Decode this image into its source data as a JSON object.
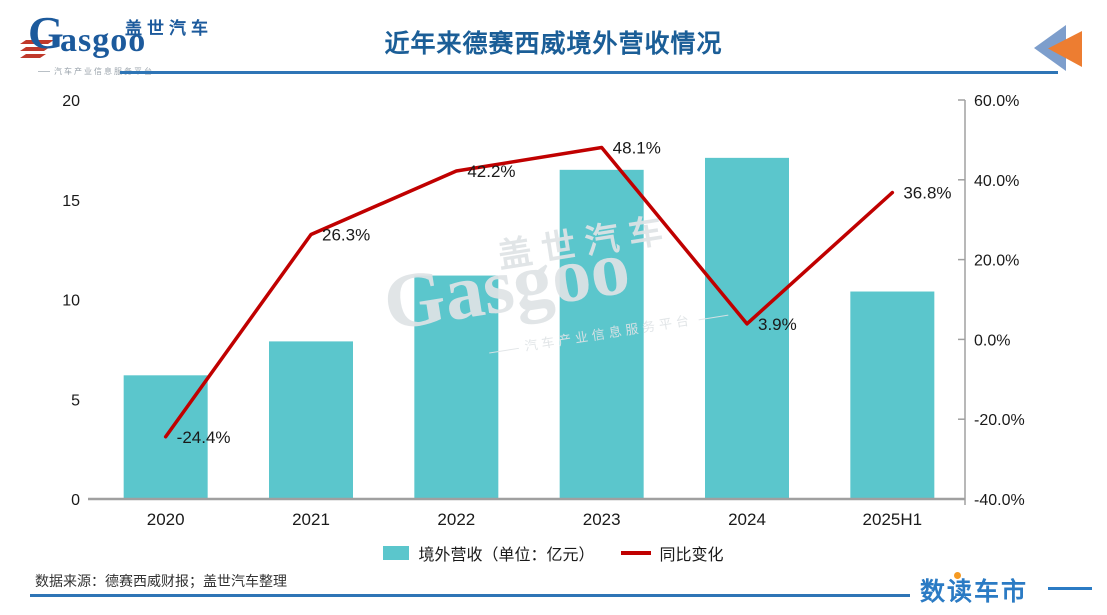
{
  "header": {
    "title": "近年来德赛西威境外营收情况",
    "logo": {
      "en_initial": "G",
      "en_rest": "asgoo",
      "cn": "盖世汽车",
      "tagline": "汽车产业信息服务平台"
    }
  },
  "chart_data": {
    "type": "bar",
    "title": "近年来德赛西威境外营收情况",
    "categories": [
      "2020",
      "2021",
      "2022",
      "2023",
      "2024",
      "2025H1"
    ],
    "series": [
      {
        "name": "境外营收（单位：亿元）",
        "type": "bar",
        "axis": "left",
        "color": "#5bc6cc",
        "values": [
          6.2,
          7.9,
          11.2,
          16.5,
          17.1,
          10.4
        ]
      },
      {
        "name": "同比变化",
        "type": "line",
        "axis": "right",
        "color": "#c00000",
        "values": [
          -24.4,
          26.3,
          42.2,
          48.1,
          3.9,
          36.8
        ],
        "labels": [
          "-24.4%",
          "26.3%",
          "42.2%",
          "48.1%",
          "3.9%",
          "36.8%"
        ]
      }
    ],
    "left_axis": {
      "min": 0,
      "max": 20,
      "ticks": [
        20,
        15,
        10,
        5,
        0
      ],
      "tick_labels": [
        "20",
        "15",
        "10",
        "5",
        "0"
      ]
    },
    "right_axis": {
      "min": -40,
      "max": 60,
      "ticks": [
        60,
        40,
        20,
        0,
        -20,
        -40
      ],
      "tick_labels": [
        "60.0%",
        "40.0%",
        "20.0%",
        "0.0%",
        "-20.0%",
        "-40.0%"
      ]
    },
    "grid": false,
    "legend_position": "bottom"
  },
  "legend": {
    "bar_label": "境外营收（单位：亿元）",
    "line_label": "同比变化"
  },
  "watermark": {
    "cn": "盖世汽车",
    "en": "Gasgoo",
    "tagline": "汽车产业信息服务平台"
  },
  "footer": {
    "source": "数据来源：德赛西威财报；盖世汽车整理",
    "brand": "数读车市"
  },
  "colors": {
    "bar": "#5bc6cc",
    "line": "#c00000",
    "title_blue": "#1b5e97",
    "rule_blue": "#2e75b6",
    "axis_gray": "#a0a0a0",
    "brand_blue": "#2b7bc4",
    "brand_dot_orange": "#f59a23",
    "corner_triangle_blue": "#7d9ecc",
    "corner_triangle_orange": "#ed7d31"
  }
}
